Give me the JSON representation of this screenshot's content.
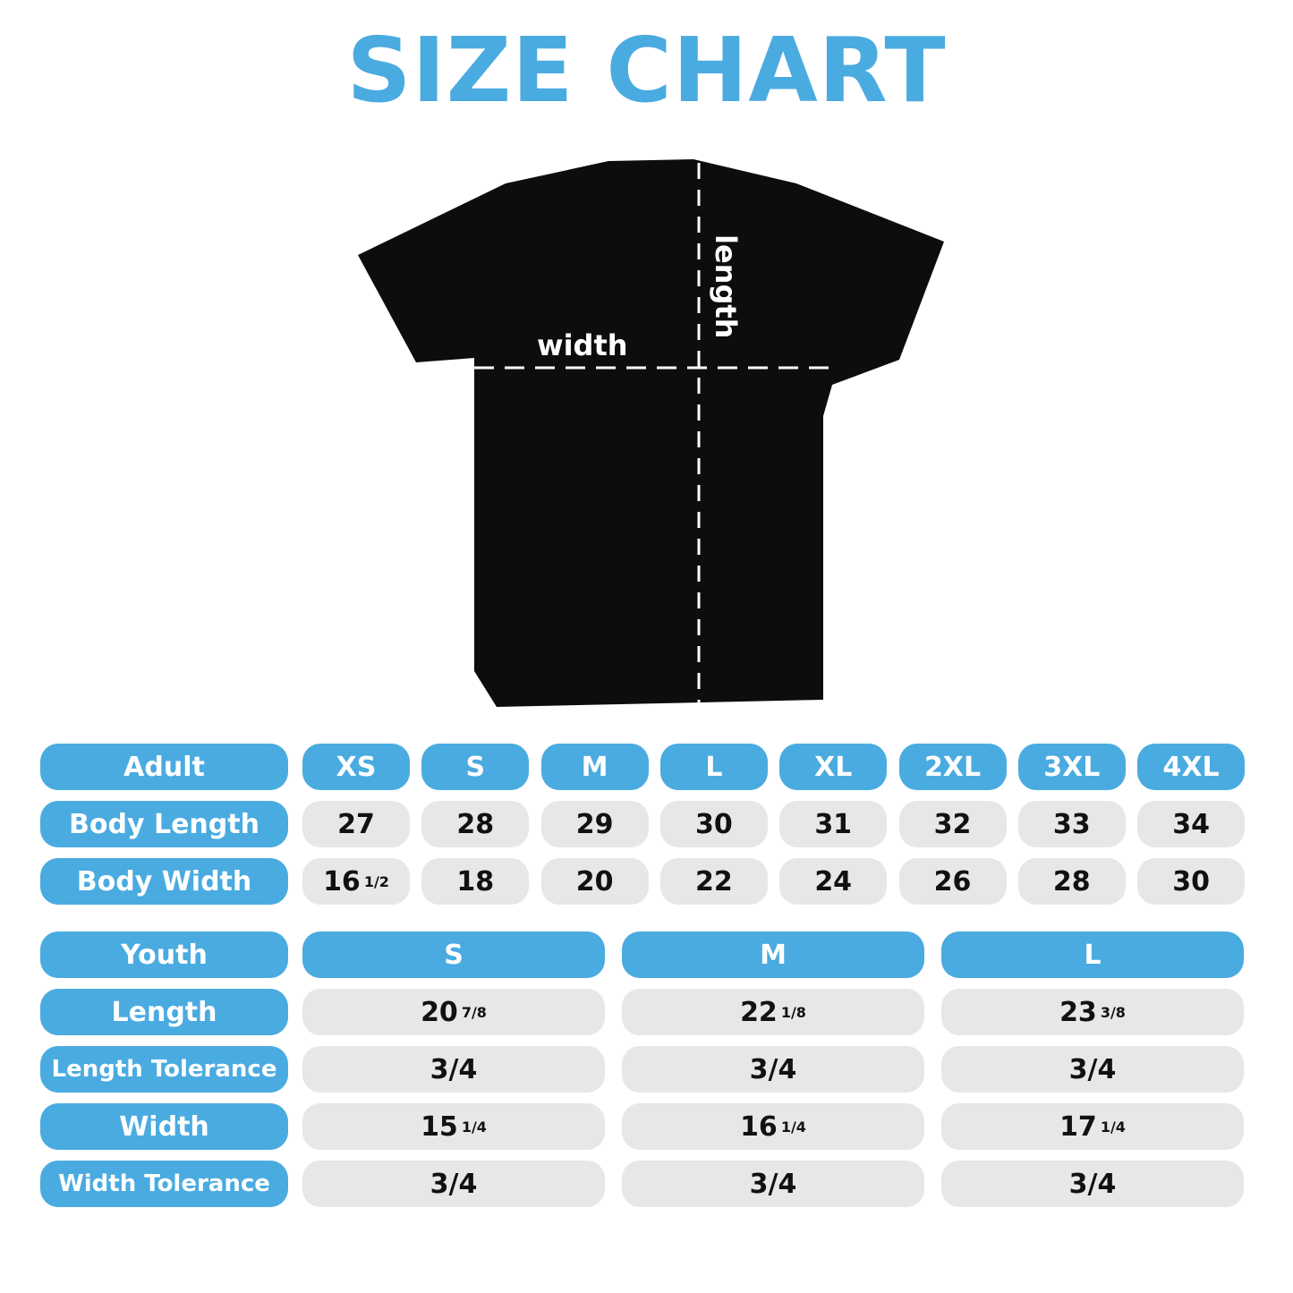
{
  "title": "SIZE CHART",
  "shirt": {
    "width_label": "width",
    "length_label": "length"
  },
  "adult": {
    "header": "Adult",
    "sizes": [
      "XS",
      "S",
      "M",
      "L",
      "XL",
      "2XL",
      "3XL",
      "4XL"
    ],
    "rows": [
      {
        "label": "Body Length",
        "values": [
          [
            "27",
            ""
          ],
          [
            "28",
            ""
          ],
          [
            "29",
            ""
          ],
          [
            "30",
            ""
          ],
          [
            "31",
            ""
          ],
          [
            "32",
            ""
          ],
          [
            "33",
            ""
          ],
          [
            "34",
            ""
          ]
        ]
      },
      {
        "label": "Body Width",
        "values": [
          [
            "16",
            "1/2"
          ],
          [
            "18",
            ""
          ],
          [
            "20",
            ""
          ],
          [
            "22",
            ""
          ],
          [
            "24",
            ""
          ],
          [
            "26",
            ""
          ],
          [
            "28",
            ""
          ],
          [
            "30",
            ""
          ]
        ]
      }
    ]
  },
  "youth": {
    "header": "Youth",
    "sizes": [
      "S",
      "M",
      "L"
    ],
    "rows": [
      {
        "label": "Length",
        "values": [
          [
            "20",
            "7/8"
          ],
          [
            "22",
            "1/8"
          ],
          [
            "23",
            "3/8"
          ]
        ]
      },
      {
        "label": "Length Tolerance",
        "values": [
          [
            "3/4",
            ""
          ],
          [
            "3/4",
            ""
          ],
          [
            "3/4",
            ""
          ]
        ]
      },
      {
        "label": "Width",
        "values": [
          [
            "15",
            "1/4"
          ],
          [
            "16",
            "1/4"
          ],
          [
            "17",
            "1/4"
          ]
        ]
      },
      {
        "label": "Width Tolerance",
        "values": [
          [
            "3/4",
            ""
          ],
          [
            "3/4",
            ""
          ],
          [
            "3/4",
            ""
          ]
        ]
      }
    ]
  },
  "colors": {
    "accent": "#4aabe0",
    "cell": "#e6e7e9"
  }
}
